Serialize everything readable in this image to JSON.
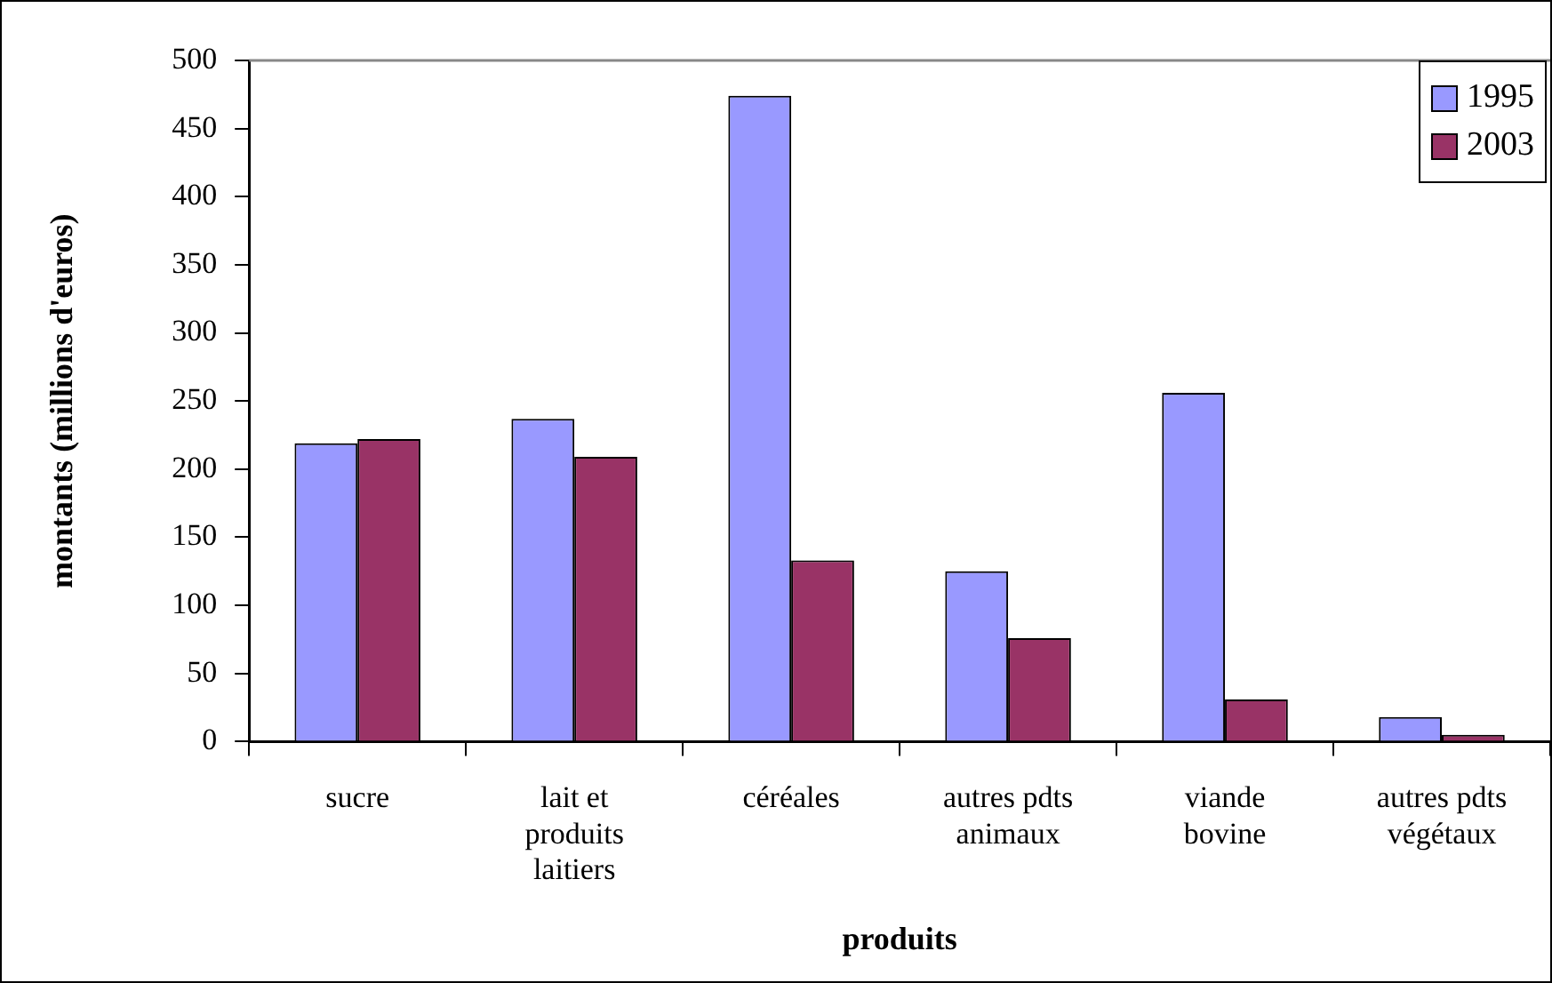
{
  "chart_data": {
    "type": "bar",
    "xlabel": "produits",
    "ylabel": "montants (millions d'euros)",
    "categories": [
      "sucre",
      "lait et produits laitiers",
      "céréales",
      "autres pdts animaux",
      "viande bovine",
      "autres pdts végétaux"
    ],
    "series": [
      {
        "name": "1995",
        "color": "#9999ff",
        "values": [
          219,
          237,
          474,
          125,
          256,
          18
        ]
      },
      {
        "name": "2003",
        "color": "#993366",
        "values": [
          222,
          209,
          133,
          76,
          31,
          5
        ]
      }
    ],
    "ylim": [
      0,
      500
    ],
    "yticks": [
      0,
      50,
      100,
      150,
      200,
      250,
      300,
      350,
      400,
      450,
      500
    ],
    "grid": false,
    "legend": "top right"
  }
}
